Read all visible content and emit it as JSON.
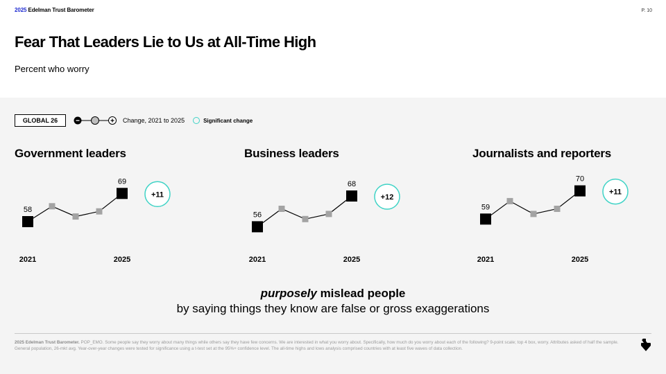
{
  "header": {
    "brand_year": "2025",
    "brand_name": " Edelman Trust Barometer",
    "page_number": "P. 10"
  },
  "title": "Fear That Leaders Lie to Us at All-Time High",
  "subtitle": "Percent who worry",
  "legend": {
    "global_label": "GLOBAL 26",
    "change_label": "Change, 2021 to 2025",
    "significant_label": "Significant change",
    "icons": [
      "minus-circle-icon",
      "neutral-circle-icon",
      "plus-circle-icon"
    ]
  },
  "colors": {
    "accent_teal": "#3fd3c6",
    "marker_gray": "#a3a3a3",
    "marker_black": "#000000",
    "brand_blue": "#1f2bd1"
  },
  "chart_data": [
    {
      "type": "line",
      "title": "Government leaders",
      "x": [
        "2021",
        "2022",
        "2023",
        "2024",
        "2025"
      ],
      "series": [
        {
          "values": [
            58,
            64,
            60,
            62,
            69
          ]
        }
      ],
      "start_label": "58",
      "end_label": "69",
      "x_tick_labels": [
        "2021",
        "2025"
      ],
      "change": "+11",
      "significant": true
    },
    {
      "type": "line",
      "title": "Business leaders",
      "x": [
        "2021",
        "2022",
        "2023",
        "2024",
        "2025"
      ],
      "series": [
        {
          "values": [
            56,
            63,
            59,
            61,
            68
          ]
        }
      ],
      "start_label": "56",
      "end_label": "68",
      "x_tick_labels": [
        "2021",
        "2025"
      ],
      "change": "+12",
      "significant": true
    },
    {
      "type": "line",
      "title": "Journalists and reporters",
      "x": [
        "2021",
        "2022",
        "2023",
        "2024",
        "2025"
      ],
      "series": [
        {
          "values": [
            59,
            66,
            61,
            63,
            70
          ]
        }
      ],
      "start_label": "59",
      "end_label": "70",
      "x_tick_labels": [
        "2021",
        "2025"
      ],
      "change": "+11",
      "significant": true
    }
  ],
  "statement": {
    "emphasis": "purposely",
    "line1_rest": " mislead people",
    "line2": "by saying things they know are false or gross exaggerations"
  },
  "footnote": {
    "source": "2025 Edelman Trust Barometer.",
    "text": " POP_EMO. Some people say they worry about many things while others say they have few concerns. We are interested in what you worry about. Specifically, how much do you worry about each of the following? 9-point scale; top 4 box, worry. Attributes asked of half the sample. General population, 26-mkt avg. Year-over-year changes were tested for significance using a t-test set at the 95%+ confidence level. The all-time highs and lows analysis comprised countries with at least five waves of data collection."
  },
  "navigation": {
    "next_icon": "next-arrow-icon"
  }
}
